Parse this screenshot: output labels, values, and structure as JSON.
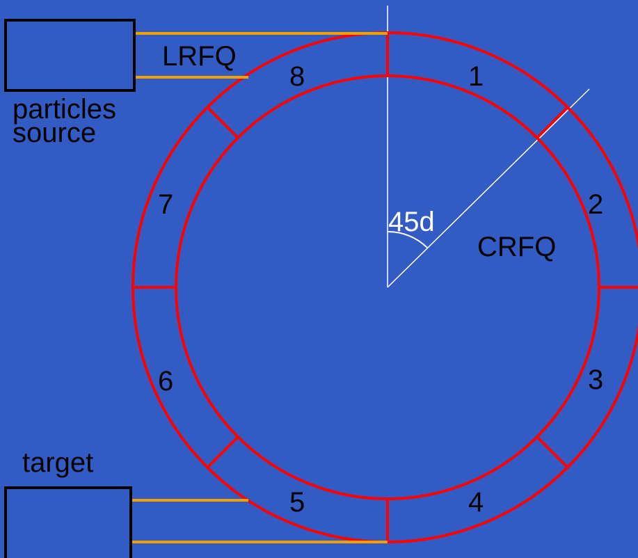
{
  "labels": {
    "lrfq": "LRFQ",
    "crfq": "CRFQ",
    "angle": "45d",
    "source_line1": "particles",
    "source_line2": "source",
    "target": "target"
  },
  "sectors": [
    "1",
    "2",
    "3",
    "4",
    "5",
    "6",
    "7",
    "8"
  ],
  "colors": {
    "background": "#325cc3",
    "ring": "#ff0000",
    "beamline": "#f0a000",
    "guide": "#ffffff",
    "box": "#000000",
    "text": "#000000",
    "angle_text": "#ffffff"
  }
}
